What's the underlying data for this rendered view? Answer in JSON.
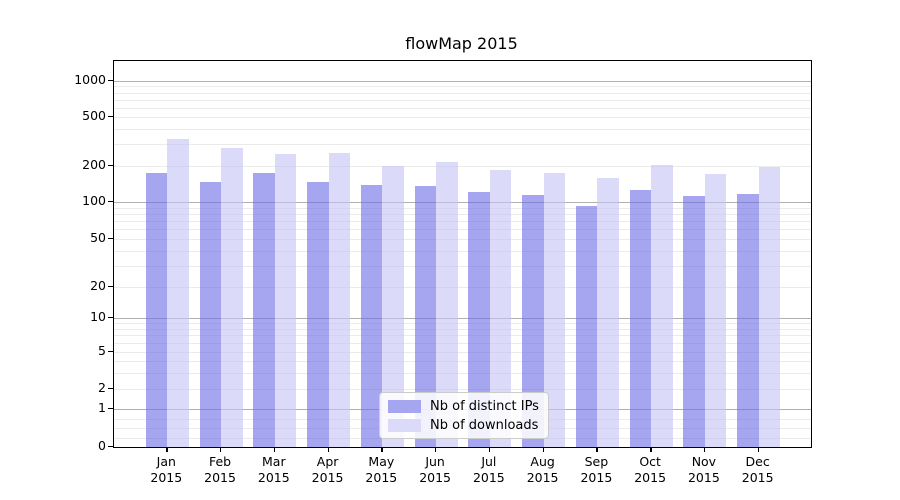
{
  "chart_data": {
    "type": "bar",
    "title": "flowMap 2015",
    "year": "2015",
    "categories": [
      "Jan",
      "Feb",
      "Mar",
      "Apr",
      "May",
      "Jun",
      "Jul",
      "Aug",
      "Sep",
      "Oct",
      "Nov",
      "Dec"
    ],
    "series": [
      {
        "name": "Nb of distinct IPs",
        "color": "#6f6fe7",
        "fill_alpha": 0.62,
        "legend_swatch_color": "#a6a6f0",
        "values": [
          175,
          146,
          175,
          148,
          138,
          136,
          121,
          114,
          93,
          125,
          112,
          116
        ]
      },
      {
        "name": "Nb of downloads",
        "color": "#c5c5f6",
        "fill_alpha": 0.62,
        "legend_swatch_color": "#dbdbf9",
        "values": [
          333,
          282,
          252,
          255,
          199,
          214,
          186,
          176,
          160,
          204,
          173,
          196
        ]
      }
    ],
    "yscale": "symlog",
    "yticks": [
      1000,
      500,
      200,
      100,
      50,
      20,
      10,
      5,
      2,
      1,
      0
    ],
    "ylim": [
      0,
      1500
    ],
    "xlabel": "",
    "ylabel": "",
    "grid": true,
    "legend_position": "lower center"
  },
  "colors": {
    "background": "#ffffff",
    "spine": "#000000",
    "major_grid": "#b0b0b0",
    "minor_grid": "#ebebeb"
  }
}
